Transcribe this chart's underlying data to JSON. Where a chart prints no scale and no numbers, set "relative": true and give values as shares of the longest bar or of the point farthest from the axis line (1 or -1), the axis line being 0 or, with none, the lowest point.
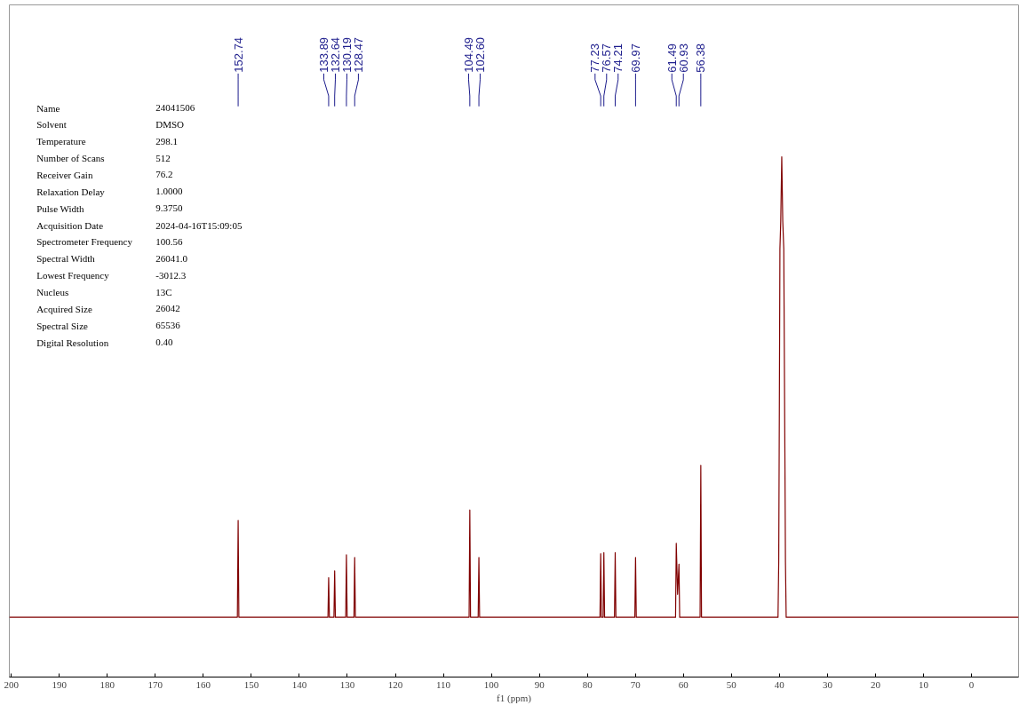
{
  "chart_data": {
    "type": "line",
    "relative": true,
    "xlabel": "f1 (ppm)",
    "xlim": [
      200.4,
      -9.8
    ],
    "xticks": [
      200,
      190,
      180,
      170,
      160,
      150,
      140,
      130,
      120,
      110,
      100,
      90,
      80,
      70,
      60,
      50,
      40,
      30,
      20,
      10,
      0
    ],
    "x": [
      200.4,
      152.9,
      152.74,
      152.59,
      134.04,
      133.89,
      133.74,
      132.79,
      132.64,
      132.49,
      130.34,
      130.19,
      130.04,
      128.62,
      128.47,
      128.32,
      104.64,
      104.49,
      104.34,
      102.75,
      102.6,
      102.45,
      77.38,
      77.23,
      77.08,
      76.72,
      76.57,
      76.42,
      74.36,
      74.21,
      74.06,
      70.12,
      69.97,
      69.82,
      61.64,
      61.49,
      61.21,
      60.93,
      60.78,
      56.53,
      56.38,
      56.23,
      40.3,
      40.15,
      40.02,
      39.9,
      39.73,
      39.52,
      39.31,
      39.1,
      38.89,
      38.75,
      38.6,
      -9.8
    ],
    "series": [
      {
        "color": "#800000",
        "values": [
          0.115,
          0.115,
          0.301,
          0.115,
          0.115,
          0.191,
          0.115,
          0.115,
          0.204,
          0.115,
          0.115,
          0.235,
          0.115,
          0.115,
          0.23,
          0.115,
          0.115,
          0.321,
          0.115,
          0.115,
          0.23,
          0.115,
          0.115,
          0.237,
          0.115,
          0.115,
          0.239,
          0.115,
          0.115,
          0.239,
          0.115,
          0.115,
          0.23,
          0.115,
          0.115,
          0.257,
          0.159,
          0.217,
          0.115,
          0.115,
          0.407,
          0.115,
          0.115,
          0.221,
          0.513,
          0.823,
          0.876,
          1.0,
          0.876,
          0.823,
          0.469,
          0.221,
          0.115,
          0.115
        ]
      }
    ],
    "annotations": [
      {
        "text": "152.74",
        "x": 152.74
      },
      {
        "text": "133.89",
        "x": 133.89
      },
      {
        "text": "132.64",
        "x": 132.64
      },
      {
        "text": "130.19",
        "x": 130.19
      },
      {
        "text": "128.47",
        "x": 128.47
      },
      {
        "text": "104.49",
        "x": 104.49
      },
      {
        "text": "102.60",
        "x": 102.6
      },
      {
        "text": "77.23",
        "x": 77.23
      },
      {
        "text": "76.57",
        "x": 76.57
      },
      {
        "text": "74.21",
        "x": 74.21
      },
      {
        "text": "69.97",
        "x": 69.97
      },
      {
        "text": "61.49",
        "x": 61.49
      },
      {
        "text": "60.93",
        "x": 60.93
      },
      {
        "text": "56.38",
        "x": 56.38
      },
      "Name",
      "24041506",
      "Solvent",
      "DMSO",
      "Temperature",
      "298.1",
      "Number of Scans",
      "512",
      "Receiver Gain",
      "76.2",
      "Relaxation Delay",
      "1.0000",
      "Pulse Width",
      "9.3750",
      "Acquisition Date",
      "2024-04-16T15:09:05",
      "Spectrometer Frequency",
      "100.56",
      "Spectral Width",
      "26041.0",
      "Lowest Frequency",
      "-3012.3",
      "Nucleus",
      "13C",
      "Acquired Size",
      "26042",
      "Spectral Size",
      "65536",
      "Digital Resolution",
      "0.40"
    ]
  }
}
